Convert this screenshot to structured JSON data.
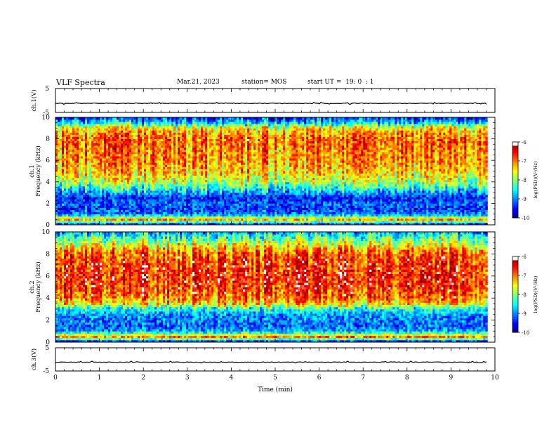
{
  "header": {
    "title": "VLF Spectra",
    "date": "Mar.21, 2023",
    "station": "station= MOS",
    "start": "start UT =  19: 0  : 1"
  },
  "chart_data": [
    {
      "type": "line",
      "panel": "ch1-waveform",
      "ylabel": "ch.1(V)",
      "ylim": [
        -5,
        5
      ],
      "yticks": [
        "5",
        "-5"
      ],
      "xlim": [
        0,
        10
      ],
      "baseline": -1.2,
      "line_end_x": 9.83
    },
    {
      "type": "heatmap",
      "panel": "ch1-spectrogram",
      "ylabel_line1": "ch.1",
      "ylabel_line2": "Frequency (kHz)",
      "ylim": [
        0,
        10
      ],
      "yticks": [
        "0",
        "2",
        "4",
        "6",
        "8",
        "10"
      ],
      "xlim": [
        0,
        10
      ],
      "data_end_x": 9.83,
      "colorbar": {
        "label": "log(PSD)(V²/Hz)",
        "range": [
          -10,
          -6
        ],
        "ticks": [
          "-6",
          "-7",
          "-8",
          "-9",
          "-10"
        ]
      },
      "profile_khz_to_logpsd": [
        [
          0.0,
          -9.6
        ],
        [
          0.5,
          -7.2
        ],
        [
          1.0,
          -9.0
        ],
        [
          1.5,
          -9.3
        ],
        [
          2.0,
          -9.1
        ],
        [
          2.5,
          -9.4
        ],
        [
          3.0,
          -8.9
        ],
        [
          3.5,
          -8.3
        ],
        [
          4.0,
          -7.8
        ],
        [
          5.0,
          -7.3
        ],
        [
          6.0,
          -7.1
        ],
        [
          7.0,
          -7.0
        ],
        [
          8.0,
          -6.9
        ],
        [
          9.0,
          -7.4
        ],
        [
          9.5,
          -8.6
        ],
        [
          10.0,
          -9.4
        ]
      ]
    },
    {
      "type": "heatmap",
      "panel": "ch2-spectrogram",
      "ylabel_line1": "ch.2",
      "ylabel_line2": "Frequency (kHz)",
      "ylim": [
        0,
        10
      ],
      "yticks": [
        "0",
        "2",
        "4",
        "6",
        "8",
        "10"
      ],
      "xlim": [
        0,
        10
      ],
      "data_end_x": 9.83,
      "colorbar": {
        "label": "log(PSD)(V²/Hz)",
        "range": [
          -10,
          -6
        ],
        "ticks": [
          "-6",
          "-7",
          "-8",
          "-9",
          "-10"
        ]
      },
      "profile_khz_to_logpsd": [
        [
          0.0,
          -9.7
        ],
        [
          0.5,
          -7.0
        ],
        [
          1.0,
          -8.8
        ],
        [
          1.5,
          -9.1
        ],
        [
          2.0,
          -9.0
        ],
        [
          2.5,
          -8.9
        ],
        [
          3.0,
          -8.4
        ],
        [
          3.5,
          -7.4
        ],
        [
          4.0,
          -6.9
        ],
        [
          5.0,
          -6.6
        ],
        [
          6.0,
          -6.5
        ],
        [
          7.0,
          -6.6
        ],
        [
          8.0,
          -6.8
        ],
        [
          8.5,
          -7.2
        ],
        [
          9.0,
          -7.7
        ],
        [
          9.5,
          -8.2
        ],
        [
          10.0,
          -8.7
        ]
      ]
    },
    {
      "type": "line",
      "panel": "ch3-waveform",
      "ylabel": "ch.3(V)",
      "ylim": [
        -5,
        5
      ],
      "yticks": [
        "5",
        "-5"
      ],
      "xlim": [
        0,
        10
      ],
      "baseline": -1.2,
      "line_end_x": 9.83
    }
  ],
  "xaxis": {
    "label": "Time (min)",
    "ticks": [
      "0",
      "1",
      "2",
      "3",
      "4",
      "5",
      "6",
      "7",
      "8",
      "9",
      "10"
    ],
    "range": [
      0,
      10
    ]
  }
}
